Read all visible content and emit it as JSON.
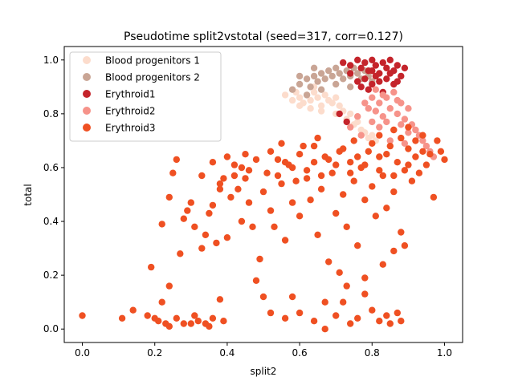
{
  "chart_data": {
    "type": "scatter",
    "title": "Pseudotime split2vstotal (seed=317, corr=0.127)",
    "xlabel": "split2",
    "ylabel": "total",
    "xlim": [
      -0.05,
      1.05
    ],
    "ylim": [
      -0.05,
      1.05
    ],
    "xticks": [
      "0.0",
      "0.2",
      "0.4",
      "0.6",
      "0.8",
      "1.0"
    ],
    "yticks": [
      "0.0",
      "0.2",
      "0.4",
      "0.6",
      "0.8",
      "1.0"
    ],
    "grid": false,
    "legend_position": "upper-left",
    "series": [
      {
        "name": "Blood progenitors 1",
        "color": "#fcdccc",
        "points": [
          [
            0.56,
            0.87
          ],
          [
            0.58,
            0.85
          ],
          [
            0.59,
            0.88
          ],
          [
            0.6,
            0.86
          ],
          [
            0.61,
            0.84
          ],
          [
            0.62,
            0.87
          ],
          [
            0.63,
            0.85
          ],
          [
            0.63,
            0.82
          ],
          [
            0.64,
            0.88
          ],
          [
            0.65,
            0.86
          ],
          [
            0.66,
            0.83
          ],
          [
            0.67,
            0.87
          ],
          [
            0.68,
            0.85
          ],
          [
            0.69,
            0.84
          ],
          [
            0.7,
            0.86
          ],
          [
            0.71,
            0.83
          ],
          [
            0.72,
            0.81
          ],
          [
            0.73,
            0.78
          ],
          [
            0.74,
            0.8
          ],
          [
            0.75,
            0.76
          ],
          [
            0.76,
            0.77
          ],
          [
            0.77,
            0.74
          ],
          [
            0.78,
            0.73
          ],
          [
            0.79,
            0.71
          ],
          [
            0.8,
            0.72
          ],
          [
            0.81,
            0.7
          ],
          [
            0.64,
            0.9
          ],
          [
            0.6,
            0.83
          ],
          [
            0.66,
            0.81
          ],
          [
            0.7,
            0.8
          ]
        ]
      },
      {
        "name": "Blood progenitors 2",
        "color": "#c9a595",
        "points": [
          [
            0.58,
            0.89
          ],
          [
            0.6,
            0.91
          ],
          [
            0.62,
            0.93
          ],
          [
            0.63,
            0.9
          ],
          [
            0.64,
            0.94
          ],
          [
            0.65,
            0.92
          ],
          [
            0.66,
            0.95
          ],
          [
            0.67,
            0.93
          ],
          [
            0.68,
            0.96
          ],
          [
            0.69,
            0.94
          ],
          [
            0.7,
            0.97
          ],
          [
            0.71,
            0.95
          ],
          [
            0.72,
            0.93
          ],
          [
            0.73,
            0.96
          ],
          [
            0.74,
            0.94
          ],
          [
            0.75,
            0.97
          ],
          [
            0.76,
            0.95
          ],
          [
            0.77,
            0.93
          ],
          [
            0.78,
            0.96
          ],
          [
            0.79,
            0.94
          ],
          [
            0.8,
            0.92
          ],
          [
            0.74,
            0.9
          ],
          [
            0.7,
            0.91
          ],
          [
            0.66,
            0.89
          ],
          [
            0.62,
            0.87
          ],
          [
            0.6,
            0.94
          ],
          [
            0.64,
            0.97
          ]
        ]
      },
      {
        "name": "Erythroid1",
        "color": "#c4242b",
        "points": [
          [
            0.72,
            0.99
          ],
          [
            0.74,
            0.98
          ],
          [
            0.76,
            1.0
          ],
          [
            0.77,
            0.97
          ],
          [
            0.78,
            0.99
          ],
          [
            0.79,
            0.96
          ],
          [
            0.8,
            1.0
          ],
          [
            0.81,
            0.98
          ],
          [
            0.82,
            0.95
          ],
          [
            0.83,
            0.99
          ],
          [
            0.84,
            0.97
          ],
          [
            0.85,
            1.0
          ],
          [
            0.86,
            0.96
          ],
          [
            0.87,
            0.98
          ],
          [
            0.88,
            0.94
          ],
          [
            0.89,
            0.97
          ],
          [
            0.78,
            0.93
          ],
          [
            0.8,
            0.91
          ],
          [
            0.82,
            0.92
          ],
          [
            0.84,
            0.93
          ],
          [
            0.86,
            0.91
          ],
          [
            0.76,
            0.92
          ],
          [
            0.79,
            0.89
          ],
          [
            0.83,
            0.88
          ],
          [
            0.85,
            0.95
          ],
          [
            0.81,
            0.94
          ],
          [
            0.74,
            0.95
          ],
          [
            0.87,
            0.92
          ],
          [
            0.77,
            0.9
          ],
          [
            0.8,
            0.96
          ],
          [
            0.71,
            0.8
          ],
          [
            0.73,
            0.77
          ]
        ]
      },
      {
        "name": "Erythroid2",
        "color": "#f6938a",
        "points": [
          [
            0.78,
            0.84
          ],
          [
            0.79,
            0.82
          ],
          [
            0.8,
            0.86
          ],
          [
            0.81,
            0.81
          ],
          [
            0.82,
            0.84
          ],
          [
            0.83,
            0.79
          ],
          [
            0.84,
            0.86
          ],
          [
            0.85,
            0.82
          ],
          [
            0.86,
            0.88
          ],
          [
            0.87,
            0.8
          ],
          [
            0.88,
            0.84
          ],
          [
            0.89,
            0.78
          ],
          [
            0.9,
            0.82
          ],
          [
            0.91,
            0.76
          ],
          [
            0.92,
            0.74
          ],
          [
            0.93,
            0.72
          ],
          [
            0.94,
            0.7
          ],
          [
            0.95,
            0.68
          ],
          [
            0.96,
            0.66
          ],
          [
            0.97,
            0.64
          ],
          [
            0.8,
            0.77
          ],
          [
            0.82,
            0.75
          ],
          [
            0.84,
            0.77
          ],
          [
            0.86,
            0.74
          ],
          [
            0.88,
            0.76
          ],
          [
            0.9,
            0.73
          ],
          [
            0.76,
            0.79
          ],
          [
            0.74,
            0.75
          ],
          [
            0.77,
            0.72
          ],
          [
            0.85,
            0.7
          ],
          [
            0.89,
            0.69
          ],
          [
            0.81,
            0.89
          ],
          [
            0.83,
            0.87
          ],
          [
            0.87,
            0.85
          ]
        ]
      },
      {
        "name": "Erythroid3",
        "color": "#ef5022",
        "points": [
          [
            0.0,
            0.05
          ],
          [
            0.11,
            0.04
          ],
          [
            0.14,
            0.07
          ],
          [
            0.18,
            0.05
          ],
          [
            0.19,
            0.23
          ],
          [
            0.2,
            0.04
          ],
          [
            0.21,
            0.03
          ],
          [
            0.22,
            0.1
          ],
          [
            0.23,
            0.02
          ],
          [
            0.24,
            0.01
          ],
          [
            0.24,
            0.16
          ],
          [
            0.26,
            0.04
          ],
          [
            0.27,
            0.28
          ],
          [
            0.28,
            0.02
          ],
          [
            0.3,
            0.02
          ],
          [
            0.31,
            0.05
          ],
          [
            0.32,
            0.03
          ],
          [
            0.34,
            0.02
          ],
          [
            0.35,
            0.01
          ],
          [
            0.36,
            0.04
          ],
          [
            0.38,
            0.11
          ],
          [
            0.39,
            0.03
          ],
          [
            0.22,
            0.39
          ],
          [
            0.24,
            0.49
          ],
          [
            0.25,
            0.58
          ],
          [
            0.26,
            0.63
          ],
          [
            0.28,
            0.41
          ],
          [
            0.29,
            0.44
          ],
          [
            0.3,
            0.47
          ],
          [
            0.31,
            0.38
          ],
          [
            0.33,
            0.3
          ],
          [
            0.34,
            0.35
          ],
          [
            0.35,
            0.43
          ],
          [
            0.36,
            0.46
          ],
          [
            0.37,
            0.32
          ],
          [
            0.38,
            0.52
          ],
          [
            0.39,
            0.56
          ],
          [
            0.4,
            0.34
          ],
          [
            0.41,
            0.49
          ],
          [
            0.42,
            0.61
          ],
          [
            0.43,
            0.52
          ],
          [
            0.44,
            0.4
          ],
          [
            0.45,
            0.56
          ],
          [
            0.46,
            0.47
          ],
          [
            0.47,
            0.38
          ],
          [
            0.48,
            0.18
          ],
          [
            0.49,
            0.26
          ],
          [
            0.5,
            0.51
          ],
          [
            0.51,
            0.58
          ],
          [
            0.52,
            0.44
          ],
          [
            0.53,
            0.38
          ],
          [
            0.54,
            0.63
          ],
          [
            0.55,
            0.54
          ],
          [
            0.56,
            0.33
          ],
          [
            0.57,
            0.61
          ],
          [
            0.58,
            0.47
          ],
          [
            0.59,
            0.55
          ],
          [
            0.6,
            0.42
          ],
          [
            0.61,
            0.68
          ],
          [
            0.62,
            0.56
          ],
          [
            0.63,
            0.48
          ],
          [
            0.64,
            0.62
          ],
          [
            0.65,
            0.35
          ],
          [
            0.66,
            0.52
          ],
          [
            0.67,
            0.64
          ],
          [
            0.68,
            0.25
          ],
          [
            0.69,
            0.58
          ],
          [
            0.7,
            0.43
          ],
          [
            0.71,
            0.66
          ],
          [
            0.72,
            0.5
          ],
          [
            0.73,
            0.38
          ],
          [
            0.74,
            0.62
          ],
          [
            0.75,
            0.55
          ],
          [
            0.76,
            0.31
          ],
          [
            0.77,
            0.6
          ],
          [
            0.78,
            0.48
          ],
          [
            0.79,
            0.66
          ],
          [
            0.8,
            0.53
          ],
          [
            0.81,
            0.42
          ],
          [
            0.82,
            0.64
          ],
          [
            0.83,
            0.57
          ],
          [
            0.84,
            0.45
          ],
          [
            0.85,
            0.68
          ],
          [
            0.86,
            0.51
          ],
          [
            0.87,
            0.62
          ],
          [
            0.88,
            0.36
          ],
          [
            0.89,
            0.59
          ],
          [
            0.9,
            0.67
          ],
          [
            0.91,
            0.55
          ],
          [
            0.92,
            0.64
          ],
          [
            0.93,
            0.58
          ],
          [
            0.94,
            0.66
          ],
          [
            0.95,
            0.61
          ],
          [
            0.96,
            0.65
          ],
          [
            0.97,
            0.49
          ],
          [
            0.98,
            0.7
          ],
          [
            0.99,
            0.66
          ],
          [
            1.0,
            0.63
          ],
          [
            0.36,
            0.62
          ],
          [
            0.4,
            0.64
          ],
          [
            0.44,
            0.6
          ],
          [
            0.48,
            0.63
          ],
          [
            0.52,
            0.66
          ],
          [
            0.56,
            0.62
          ],
          [
            0.6,
            0.65
          ],
          [
            0.64,
            0.68
          ],
          [
            0.68,
            0.63
          ],
          [
            0.72,
            0.67
          ],
          [
            0.76,
            0.64
          ],
          [
            0.8,
            0.69
          ],
          [
            0.84,
            0.65
          ],
          [
            0.88,
            0.71
          ],
          [
            0.92,
            0.7
          ],
          [
            0.33,
            0.57
          ],
          [
            0.45,
            0.65
          ],
          [
            0.55,
            0.69
          ],
          [
            0.65,
            0.71
          ],
          [
            0.75,
            0.7
          ],
          [
            0.82,
            0.72
          ],
          [
            0.86,
            0.74
          ],
          [
            0.9,
            0.75
          ],
          [
            0.94,
            0.72
          ],
          [
            0.5,
            0.12
          ],
          [
            0.52,
            0.06
          ],
          [
            0.56,
            0.04
          ],
          [
            0.58,
            0.12
          ],
          [
            0.6,
            0.06
          ],
          [
            0.64,
            0.03
          ],
          [
            0.67,
            0.1
          ],
          [
            0.67,
            0.0
          ],
          [
            0.7,
            0.05
          ],
          [
            0.72,
            0.1
          ],
          [
            0.74,
            0.02
          ],
          [
            0.76,
            0.04
          ],
          [
            0.78,
            0.13
          ],
          [
            0.8,
            0.07
          ],
          [
            0.82,
            0.03
          ],
          [
            0.84,
            0.05
          ],
          [
            0.85,
            0.02
          ],
          [
            0.87,
            0.06
          ],
          [
            0.88,
            0.03
          ],
          [
            0.71,
            0.21
          ],
          [
            0.73,
            0.16
          ],
          [
            0.78,
            0.19
          ],
          [
            0.83,
            0.24
          ],
          [
            0.86,
            0.29
          ],
          [
            0.89,
            0.31
          ],
          [
            0.38,
            0.54
          ],
          [
            0.42,
            0.57
          ],
          [
            0.46,
            0.59
          ],
          [
            0.54,
            0.57
          ],
          [
            0.58,
            0.6
          ],
          [
            0.62,
            0.59
          ],
          [
            0.66,
            0.57
          ],
          [
            0.7,
            0.61
          ],
          [
            0.74,
            0.58
          ],
          [
            0.78,
            0.61
          ],
          [
            0.82,
            0.59
          ],
          [
            0.86,
            0.57
          ],
          [
            0.9,
            0.61
          ]
        ]
      }
    ]
  }
}
